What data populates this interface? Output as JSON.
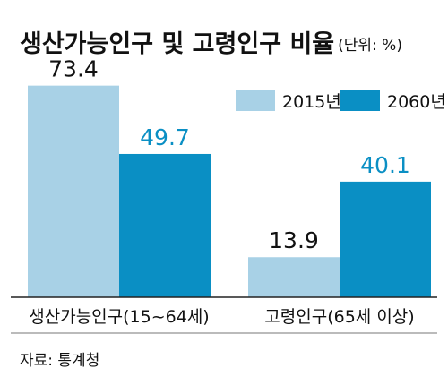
{
  "chart_data": {
    "type": "bar",
    "title": "생산가능인구 및 고령인구 비율",
    "unit": "(단위: %)",
    "categories": [
      "생산가능인구(15~64세)",
      "고령인구(65세 이상)"
    ],
    "series": [
      {
        "name": "2015년",
        "color": "#a8d1e6",
        "label_color": "#111111",
        "values": [
          73.4,
          13.9
        ]
      },
      {
        "name": "2060년",
        "color": "#0a8fc4",
        "label_color": "#0a8fc4",
        "values": [
          49.7,
          40.1
        ]
      }
    ],
    "ylim": [
      0,
      100
    ],
    "grid": false,
    "legend": "top-right",
    "source": "자료: 통계청"
  }
}
